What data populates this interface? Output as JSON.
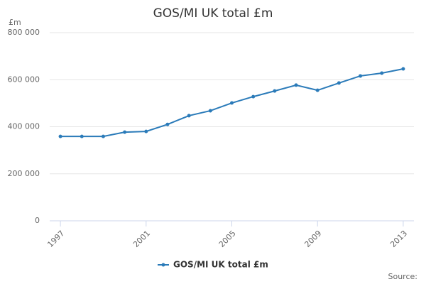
{
  "chart_data": {
    "type": "line",
    "title": "GOS/MI UK total £m",
    "y_label": "£m",
    "source": "Source:",
    "x": [
      1997,
      1998,
      1999,
      2000,
      2001,
      2002,
      2003,
      2004,
      2005,
      2006,
      2007,
      2008,
      2009,
      2010,
      2011,
      2012,
      2013
    ],
    "series": [
      {
        "name": "GOS/MI UK total £m",
        "color": "#2b7bb9",
        "values": [
          359000,
          359000,
          359000,
          377000,
          380000,
          410000,
          447000,
          468000,
          501000,
          528000,
          552000,
          577000,
          555000,
          586000,
          616000,
          628000,
          646000
        ]
      }
    ],
    "xlim": [
      1996.5,
      2013.5
    ],
    "xticks": [
      1997,
      2001,
      2005,
      2009,
      2013
    ],
    "ylim": [
      0,
      800000
    ],
    "yticks": [
      0,
      {
        "value": 200000,
        "label": "200 000"
      },
      {
        "value": 400000,
        "label": "400 000"
      },
      {
        "value": 600000,
        "label": "600 000"
      },
      {
        "value": 800000,
        "label": "800 000"
      }
    ],
    "grid": true,
    "legend": "bottom"
  }
}
